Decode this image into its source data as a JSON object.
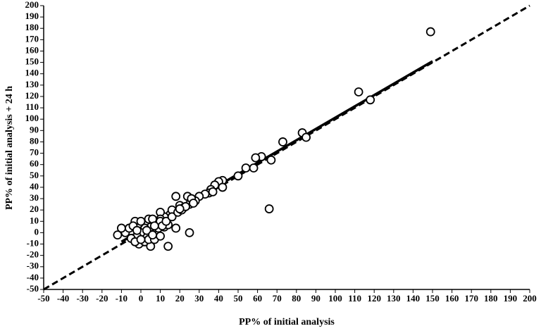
{
  "chart_data": {
    "type": "scatter",
    "x_label": "PP% of initial analysis",
    "y_label": "PP% of initial analysis + 24 h",
    "xlim": [
      -50,
      200
    ],
    "ylim": [
      -50,
      200
    ],
    "xticks": [
      -50,
      -40,
      -30,
      -20,
      -10,
      0,
      10,
      20,
      30,
      40,
      50,
      60,
      70,
      80,
      90,
      100,
      110,
      120,
      130,
      140,
      150,
      160,
      170,
      180,
      190,
      200
    ],
    "yticks": [
      -50,
      -40,
      -30,
      -20,
      -10,
      0,
      10,
      20,
      30,
      40,
      50,
      60,
      70,
      80,
      90,
      100,
      110,
      120,
      130,
      140,
      150,
      160,
      170,
      180,
      190,
      200
    ],
    "grid": false,
    "marker_color": "#000000",
    "series": [
      {
        "name": null,
        "color": "#000000",
        "x": [
          149,
          112,
          118,
          83,
          85,
          73,
          67,
          62,
          59,
          58,
          54,
          50,
          66,
          42,
          40,
          38,
          42,
          36,
          35,
          33,
          37,
          30,
          28,
          25,
          24,
          18,
          20,
          22,
          26,
          27,
          25,
          14,
          18,
          15,
          16,
          12,
          10,
          10,
          8,
          6,
          5,
          4,
          2,
          0,
          -2,
          -1,
          -3,
          0,
          1,
          -1,
          2,
          5,
          4,
          7,
          8,
          10,
          12,
          14,
          10,
          -5,
          -8,
          -10,
          -12,
          -6,
          -4,
          -2,
          3,
          6,
          9,
          11,
          13,
          16,
          19,
          21,
          23,
          20,
          -3,
          0,
          6,
          7
        ],
        "values": [
          177,
          124,
          117,
          88,
          84,
          80,
          64,
          67,
          66,
          57,
          57,
          50,
          21,
          46,
          45,
          42,
          40,
          38,
          35,
          34,
          36,
          32,
          28,
          25,
          32,
          32,
          24,
          22,
          30,
          26,
          0,
          -12,
          4,
          16,
          20,
          14,
          18,
          12,
          10,
          8,
          5,
          12,
          4,
          0,
          -3,
          8,
          10,
          10,
          -8,
          -10,
          -8,
          -12,
          -6,
          -6,
          0,
          -3,
          5,
          7,
          10,
          -5,
          0,
          4,
          -2,
          4,
          6,
          2,
          2,
          -2,
          4,
          6,
          10,
          14,
          18,
          20,
          23,
          21,
          -8,
          -6,
          12,
          6
        ]
      }
    ],
    "reference_lines": [
      {
        "x": [
          -50,
          200
        ],
        "y": [
          -50,
          200
        ],
        "dash": true
      },
      {
        "x": [
          -10,
          150
        ],
        "y": [
          -8,
          151
        ],
        "dash": false
      }
    ]
  }
}
